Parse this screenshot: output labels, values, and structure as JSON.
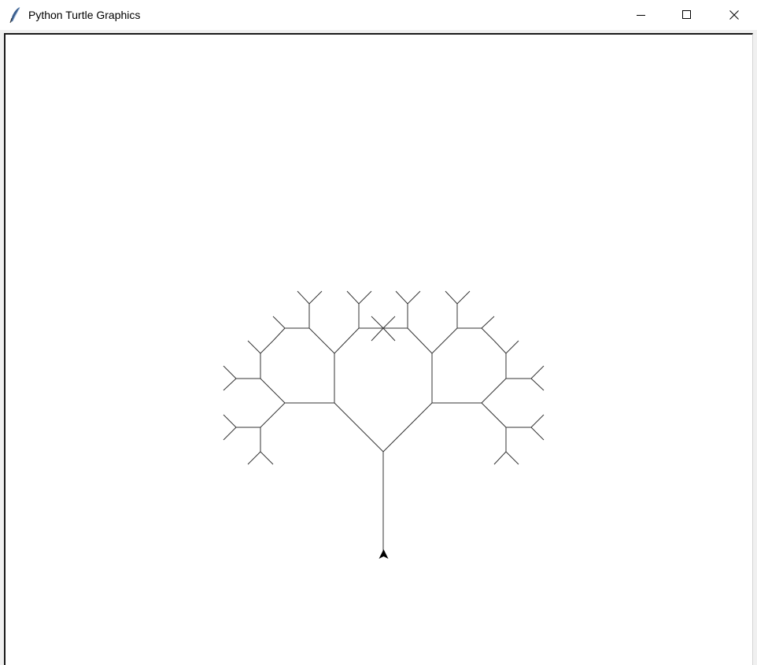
{
  "window": {
    "title": "Python Turtle Graphics",
    "icon": "feather-icon",
    "controls": {
      "minimize": "minimize-icon",
      "maximize": "maximize-icon",
      "close": "close-icon"
    }
  },
  "canvas": {
    "background": "#ffffff",
    "pen_color": "#333333",
    "turtle_shape": "arrow",
    "turtle_color": "#000000"
  }
}
